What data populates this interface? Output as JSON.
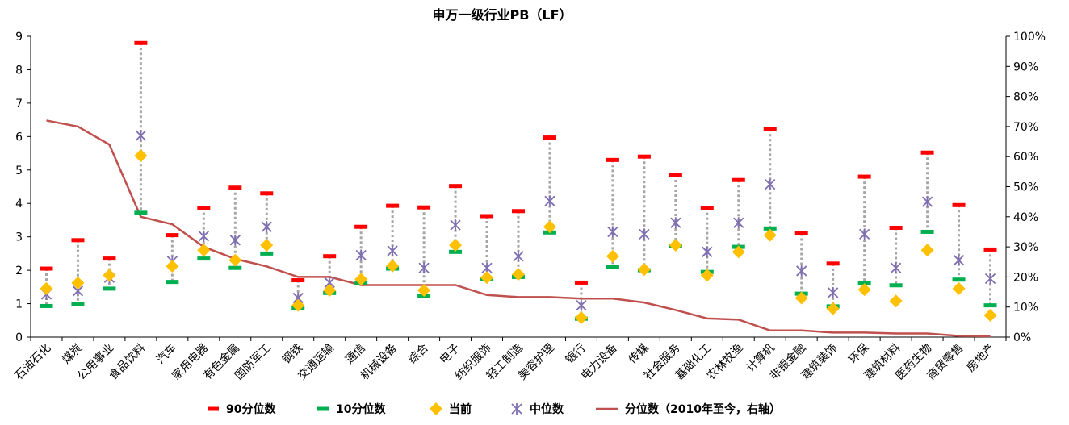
{
  "chart_data": {
    "type": "line",
    "title": "申万一级行业PB（LF）",
    "categories": [
      "石油石化",
      "煤炭",
      "公用事业",
      "食品饮料",
      "汽车",
      "家用电器",
      "有色金属",
      "国防军工",
      "钢铁",
      "交通运输",
      "通信",
      "机械设备",
      "综合",
      "电子",
      "纺织服饰",
      "轻工制造",
      "美容护理",
      "银行",
      "电力设备",
      "传媒",
      "社会服务",
      "基础化工",
      "农林牧渔",
      "计算机",
      "非银金融",
      "建筑装饰",
      "环保",
      "建筑材料",
      "医药生物",
      "商贸零售",
      "房地产"
    ],
    "left_axis": {
      "ylim": [
        0,
        9
      ],
      "ticks": [
        "0",
        "1",
        "2",
        "3",
        "4",
        "5",
        "6",
        "7",
        "8",
        "9"
      ]
    },
    "right_axis": {
      "ylim": [
        0,
        100
      ],
      "ticks": [
        "0%",
        "10%",
        "20%",
        "30%",
        "40%",
        "50%",
        "60%",
        "70%",
        "80%",
        "90%",
        "100%"
      ]
    },
    "series": [
      {
        "name": "90分位数",
        "color": "#ff0000",
        "marker": "dash",
        "axis": "left",
        "values": [
          2.05,
          2.9,
          2.35,
          8.8,
          3.05,
          3.87,
          4.47,
          4.3,
          1.7,
          2.42,
          3.3,
          3.93,
          3.88,
          4.52,
          3.62,
          3.77,
          5.97,
          1.63,
          5.3,
          5.4,
          4.85,
          3.87,
          4.7,
          6.22,
          3.1,
          2.2,
          4.8,
          3.27,
          5.52,
          3.95,
          2.62
        ]
      },
      {
        "name": "10分位数",
        "color": "#00b050",
        "marker": "dash",
        "axis": "left",
        "values": [
          0.93,
          1.0,
          1.45,
          3.72,
          1.65,
          2.35,
          2.07,
          2.5,
          0.88,
          1.32,
          1.63,
          2.05,
          1.23,
          2.55,
          1.75,
          1.8,
          3.13,
          0.55,
          2.1,
          2.0,
          2.73,
          1.95,
          2.7,
          3.25,
          1.3,
          0.92,
          1.62,
          1.55,
          3.15,
          1.72,
          0.95
        ]
      },
      {
        "name": "当前",
        "color": "#ffc000",
        "marker": "diamond",
        "axis": "left",
        "values": [
          1.45,
          1.62,
          1.85,
          5.43,
          2.12,
          2.6,
          2.3,
          2.75,
          0.95,
          1.4,
          1.73,
          2.13,
          1.4,
          2.75,
          1.78,
          1.88,
          3.3,
          0.58,
          2.42,
          2.02,
          2.75,
          1.85,
          2.55,
          3.05,
          1.17,
          0.85,
          1.42,
          1.08,
          2.6,
          1.45,
          0.65
        ]
      },
      {
        "name": "中位数",
        "color": "#7f6fb0",
        "marker": "cross",
        "axis": "left",
        "values": [
          1.28,
          1.38,
          1.78,
          6.03,
          2.27,
          3.02,
          2.9,
          3.3,
          1.17,
          1.63,
          2.45,
          2.58,
          2.07,
          3.35,
          2.07,
          2.42,
          4.07,
          0.95,
          3.15,
          3.08,
          3.42,
          2.55,
          3.42,
          4.57,
          1.98,
          1.33,
          3.08,
          2.07,
          4.05,
          2.3,
          1.75
        ]
      },
      {
        "name": "分位数（2010年至今，右轴）",
        "color": "#c0504d",
        "marker": "line",
        "axis": "right",
        "values": [
          72,
          70,
          64,
          40,
          37.5,
          30,
          26,
          23.5,
          20,
          20,
          17.3,
          17.3,
          17.3,
          17.3,
          14,
          13.3,
          13.3,
          12.8,
          12.8,
          11.5,
          9,
          6.2,
          5.8,
          2.2,
          2.2,
          1.5,
          1.5,
          1.2,
          1.2,
          0.4,
          0.3
        ]
      }
    ],
    "connector_line_color": "#a6a6a6",
    "legend": "bottom"
  }
}
